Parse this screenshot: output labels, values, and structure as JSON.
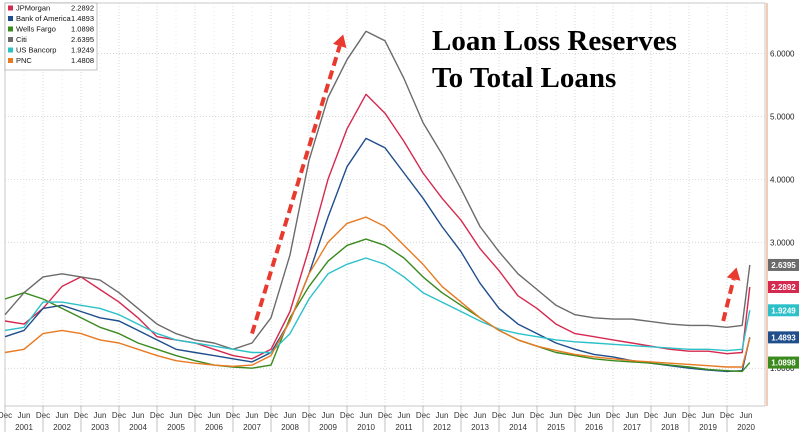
{
  "chart_data": {
    "type": "line",
    "title_lines": [
      "Loan Loss Reserves",
      "To Total Loans"
    ],
    "x_years": [
      "2001",
      "2002",
      "2003",
      "2004",
      "2005",
      "2006",
      "2007",
      "2008",
      "2009",
      "2010",
      "2011",
      "2012",
      "2013",
      "2014",
      "2015",
      "2016",
      "2017",
      "2018",
      "2019",
      "2020"
    ],
    "x_subticks": [
      "Dec",
      "Jun"
    ],
    "ylim": [
      0.4,
      6.8
    ],
    "y_ticks": [
      {
        "value": 6.0,
        "label": "6.0000"
      },
      {
        "value": 5.0,
        "label": "5.0000"
      },
      {
        "value": 4.0,
        "label": "4.0000"
      },
      {
        "value": 3.0,
        "label": "3.0000"
      },
      {
        "value": 1.0,
        "label": "1.0000"
      }
    ],
    "grid": true,
    "legend_position": "top-left",
    "series": [
      {
        "name": "JPMorgan",
        "last": "2.2892",
        "color": "#d6294f",
        "points": [
          [
            2000.5,
            1.75
          ],
          [
            2001.0,
            1.7
          ],
          [
            2001.5,
            1.95
          ],
          [
            2002.0,
            2.3
          ],
          [
            2002.5,
            2.45
          ],
          [
            2003.0,
            2.25
          ],
          [
            2003.5,
            2.05
          ],
          [
            2004.0,
            1.8
          ],
          [
            2004.5,
            1.5
          ],
          [
            2005.0,
            1.45
          ],
          [
            2005.5,
            1.4
          ],
          [
            2006.0,
            1.3
          ],
          [
            2006.5,
            1.2
          ],
          [
            2007.0,
            1.15
          ],
          [
            2007.5,
            1.3
          ],
          [
            2008.0,
            1.9
          ],
          [
            2008.5,
            2.9
          ],
          [
            2009.0,
            4.0
          ],
          [
            2009.5,
            4.8
          ],
          [
            2010.0,
            5.35
          ],
          [
            2010.5,
            5.05
          ],
          [
            2011.0,
            4.6
          ],
          [
            2011.5,
            4.1
          ],
          [
            2012.0,
            3.7
          ],
          [
            2012.5,
            3.35
          ],
          [
            2013.0,
            2.9
          ],
          [
            2013.5,
            2.55
          ],
          [
            2014.0,
            2.15
          ],
          [
            2014.5,
            1.95
          ],
          [
            2015.0,
            1.7
          ],
          [
            2015.5,
            1.55
          ],
          [
            2016.0,
            1.5
          ],
          [
            2016.5,
            1.45
          ],
          [
            2017.0,
            1.4
          ],
          [
            2017.5,
            1.35
          ],
          [
            2018.0,
            1.3
          ],
          [
            2018.5,
            1.27
          ],
          [
            2019.0,
            1.27
          ],
          [
            2019.5,
            1.23
          ],
          [
            2019.9,
            1.25
          ],
          [
            2020.1,
            2.29
          ]
        ]
      },
      {
        "name": "Bank of America",
        "last": "1.4893",
        "color": "#1f4e8c",
        "points": [
          [
            2000.5,
            1.5
          ],
          [
            2001.0,
            1.6
          ],
          [
            2001.5,
            1.95
          ],
          [
            2002.0,
            2.0
          ],
          [
            2002.5,
            1.9
          ],
          [
            2003.0,
            1.8
          ],
          [
            2003.5,
            1.75
          ],
          [
            2004.0,
            1.6
          ],
          [
            2004.5,
            1.45
          ],
          [
            2005.0,
            1.3
          ],
          [
            2005.5,
            1.25
          ],
          [
            2006.0,
            1.2
          ],
          [
            2006.5,
            1.15
          ],
          [
            2007.0,
            1.1
          ],
          [
            2007.5,
            1.25
          ],
          [
            2008.0,
            1.75
          ],
          [
            2008.5,
            2.5
          ],
          [
            2009.0,
            3.4
          ],
          [
            2009.5,
            4.2
          ],
          [
            2010.0,
            4.65
          ],
          [
            2010.5,
            4.5
          ],
          [
            2011.0,
            4.1
          ],
          [
            2011.5,
            3.7
          ],
          [
            2012.0,
            3.25
          ],
          [
            2012.5,
            2.85
          ],
          [
            2013.0,
            2.35
          ],
          [
            2013.5,
            1.95
          ],
          [
            2014.0,
            1.7
          ],
          [
            2014.5,
            1.55
          ],
          [
            2015.0,
            1.4
          ],
          [
            2015.5,
            1.3
          ],
          [
            2016.0,
            1.22
          ],
          [
            2016.5,
            1.18
          ],
          [
            2017.0,
            1.12
          ],
          [
            2017.5,
            1.08
          ],
          [
            2018.0,
            1.04
          ],
          [
            2018.5,
            1.0
          ],
          [
            2019.0,
            0.97
          ],
          [
            2019.5,
            0.95
          ],
          [
            2019.9,
            0.96
          ],
          [
            2020.1,
            1.49
          ]
        ]
      },
      {
        "name": "Wells Fargo",
        "last": "1.0898",
        "color": "#3a8a1e",
        "points": [
          [
            2000.5,
            2.1
          ],
          [
            2001.0,
            2.2
          ],
          [
            2001.5,
            2.1
          ],
          [
            2002.0,
            1.95
          ],
          [
            2002.5,
            1.8
          ],
          [
            2003.0,
            1.65
          ],
          [
            2003.5,
            1.55
          ],
          [
            2004.0,
            1.4
          ],
          [
            2004.5,
            1.3
          ],
          [
            2005.0,
            1.2
          ],
          [
            2005.5,
            1.12
          ],
          [
            2006.0,
            1.05
          ],
          [
            2006.5,
            1.02
          ],
          [
            2007.0,
            1.0
          ],
          [
            2007.5,
            1.05
          ],
          [
            2008.0,
            1.8
          ],
          [
            2008.5,
            2.3
          ],
          [
            2009.0,
            2.7
          ],
          [
            2009.5,
            2.95
          ],
          [
            2010.0,
            3.05
          ],
          [
            2010.5,
            2.95
          ],
          [
            2011.0,
            2.75
          ],
          [
            2011.5,
            2.45
          ],
          [
            2012.0,
            2.2
          ],
          [
            2012.5,
            2.0
          ],
          [
            2013.0,
            1.8
          ],
          [
            2013.5,
            1.6
          ],
          [
            2014.0,
            1.45
          ],
          [
            2014.5,
            1.35
          ],
          [
            2015.0,
            1.25
          ],
          [
            2015.5,
            1.2
          ],
          [
            2016.0,
            1.15
          ],
          [
            2016.5,
            1.12
          ],
          [
            2017.0,
            1.1
          ],
          [
            2017.5,
            1.08
          ],
          [
            2018.0,
            1.05
          ],
          [
            2018.5,
            1.02
          ],
          [
            2019.0,
            0.98
          ],
          [
            2019.5,
            0.96
          ],
          [
            2019.9,
            0.95
          ],
          [
            2020.1,
            1.09
          ]
        ]
      },
      {
        "name": "Citi",
        "last": "2.6395",
        "color": "#6b6b6b",
        "points": [
          [
            2000.5,
            1.85
          ],
          [
            2001.0,
            2.2
          ],
          [
            2001.5,
            2.45
          ],
          [
            2002.0,
            2.5
          ],
          [
            2002.5,
            2.45
          ],
          [
            2003.0,
            2.4
          ],
          [
            2003.5,
            2.2
          ],
          [
            2004.0,
            1.95
          ],
          [
            2004.5,
            1.7
          ],
          [
            2005.0,
            1.55
          ],
          [
            2005.5,
            1.45
          ],
          [
            2006.0,
            1.4
          ],
          [
            2006.5,
            1.3
          ],
          [
            2007.0,
            1.4
          ],
          [
            2007.5,
            1.8
          ],
          [
            2008.0,
            2.8
          ],
          [
            2008.5,
            4.3
          ],
          [
            2009.0,
            5.3
          ],
          [
            2009.5,
            5.9
          ],
          [
            2010.0,
            6.35
          ],
          [
            2010.5,
            6.2
          ],
          [
            2011.0,
            5.6
          ],
          [
            2011.5,
            4.9
          ],
          [
            2012.0,
            4.4
          ],
          [
            2012.5,
            3.85
          ],
          [
            2013.0,
            3.25
          ],
          [
            2013.5,
            2.85
          ],
          [
            2014.0,
            2.5
          ],
          [
            2014.5,
            2.25
          ],
          [
            2015.0,
            2.0
          ],
          [
            2015.5,
            1.85
          ],
          [
            2016.0,
            1.8
          ],
          [
            2016.5,
            1.78
          ],
          [
            2017.0,
            1.78
          ],
          [
            2017.5,
            1.74
          ],
          [
            2018.0,
            1.7
          ],
          [
            2018.5,
            1.68
          ],
          [
            2019.0,
            1.68
          ],
          [
            2019.5,
            1.65
          ],
          [
            2019.9,
            1.68
          ],
          [
            2020.1,
            2.64
          ]
        ]
      },
      {
        "name": "US Bancorp",
        "last": "1.9249",
        "color": "#2cc1c9",
        "points": [
          [
            2000.5,
            1.6
          ],
          [
            2001.0,
            1.65
          ],
          [
            2001.5,
            2.05
          ],
          [
            2002.0,
            2.05
          ],
          [
            2002.5,
            2.0
          ],
          [
            2003.0,
            1.95
          ],
          [
            2003.5,
            1.85
          ],
          [
            2004.0,
            1.7
          ],
          [
            2004.5,
            1.55
          ],
          [
            2005.0,
            1.45
          ],
          [
            2005.5,
            1.4
          ],
          [
            2006.0,
            1.35
          ],
          [
            2006.5,
            1.3
          ],
          [
            2007.0,
            1.25
          ],
          [
            2007.5,
            1.25
          ],
          [
            2008.0,
            1.55
          ],
          [
            2008.5,
            2.1
          ],
          [
            2009.0,
            2.5
          ],
          [
            2009.5,
            2.65
          ],
          [
            2010.0,
            2.75
          ],
          [
            2010.5,
            2.65
          ],
          [
            2011.0,
            2.45
          ],
          [
            2011.5,
            2.2
          ],
          [
            2012.0,
            2.05
          ],
          [
            2012.5,
            1.9
          ],
          [
            2013.0,
            1.75
          ],
          [
            2013.5,
            1.62
          ],
          [
            2014.0,
            1.55
          ],
          [
            2014.5,
            1.5
          ],
          [
            2015.0,
            1.45
          ],
          [
            2015.5,
            1.42
          ],
          [
            2016.0,
            1.4
          ],
          [
            2016.5,
            1.38
          ],
          [
            2017.0,
            1.36
          ],
          [
            2017.5,
            1.34
          ],
          [
            2018.0,
            1.32
          ],
          [
            2018.5,
            1.3
          ],
          [
            2019.0,
            1.3
          ],
          [
            2019.5,
            1.28
          ],
          [
            2019.9,
            1.3
          ],
          [
            2020.1,
            1.92
          ]
        ]
      },
      {
        "name": "PNC",
        "last": "1.4808",
        "color": "#e87a22",
        "points": [
          [
            2000.5,
            1.25
          ],
          [
            2001.0,
            1.3
          ],
          [
            2001.5,
            1.55
          ],
          [
            2002.0,
            1.6
          ],
          [
            2002.5,
            1.55
          ],
          [
            2003.0,
            1.45
          ],
          [
            2003.5,
            1.4
          ],
          [
            2004.0,
            1.3
          ],
          [
            2004.5,
            1.2
          ],
          [
            2005.0,
            1.12
          ],
          [
            2005.5,
            1.08
          ],
          [
            2006.0,
            1.05
          ],
          [
            2006.5,
            1.03
          ],
          [
            2007.0,
            1.05
          ],
          [
            2007.5,
            1.2
          ],
          [
            2008.0,
            1.75
          ],
          [
            2008.5,
            2.5
          ],
          [
            2009.0,
            3.0
          ],
          [
            2009.5,
            3.3
          ],
          [
            2010.0,
            3.4
          ],
          [
            2010.5,
            3.25
          ],
          [
            2011.0,
            2.95
          ],
          [
            2011.5,
            2.65
          ],
          [
            2012.0,
            2.3
          ],
          [
            2012.5,
            2.05
          ],
          [
            2013.0,
            1.8
          ],
          [
            2013.5,
            1.6
          ],
          [
            2014.0,
            1.45
          ],
          [
            2014.5,
            1.35
          ],
          [
            2015.0,
            1.28
          ],
          [
            2015.5,
            1.22
          ],
          [
            2016.0,
            1.18
          ],
          [
            2016.5,
            1.15
          ],
          [
            2017.0,
            1.12
          ],
          [
            2017.5,
            1.1
          ],
          [
            2018.0,
            1.08
          ],
          [
            2018.5,
            1.06
          ],
          [
            2019.0,
            1.04
          ],
          [
            2019.5,
            1.02
          ],
          [
            2019.9,
            1.02
          ],
          [
            2020.1,
            1.48
          ]
        ]
      }
    ],
    "end_label_order": [
      "Citi",
      "JPMorgan",
      "US Bancorp",
      "Bank of America",
      "Wells Fargo"
    ],
    "arrows": [
      {
        "from": [
          2007.0,
          1.55
        ],
        "to": [
          2009.4,
          6.3
        ],
        "color": "#e83a2e"
      },
      {
        "from": [
          2019.4,
          1.75
        ],
        "to": [
          2019.75,
          2.6
        ],
        "color": "#e83a2e"
      }
    ]
  }
}
